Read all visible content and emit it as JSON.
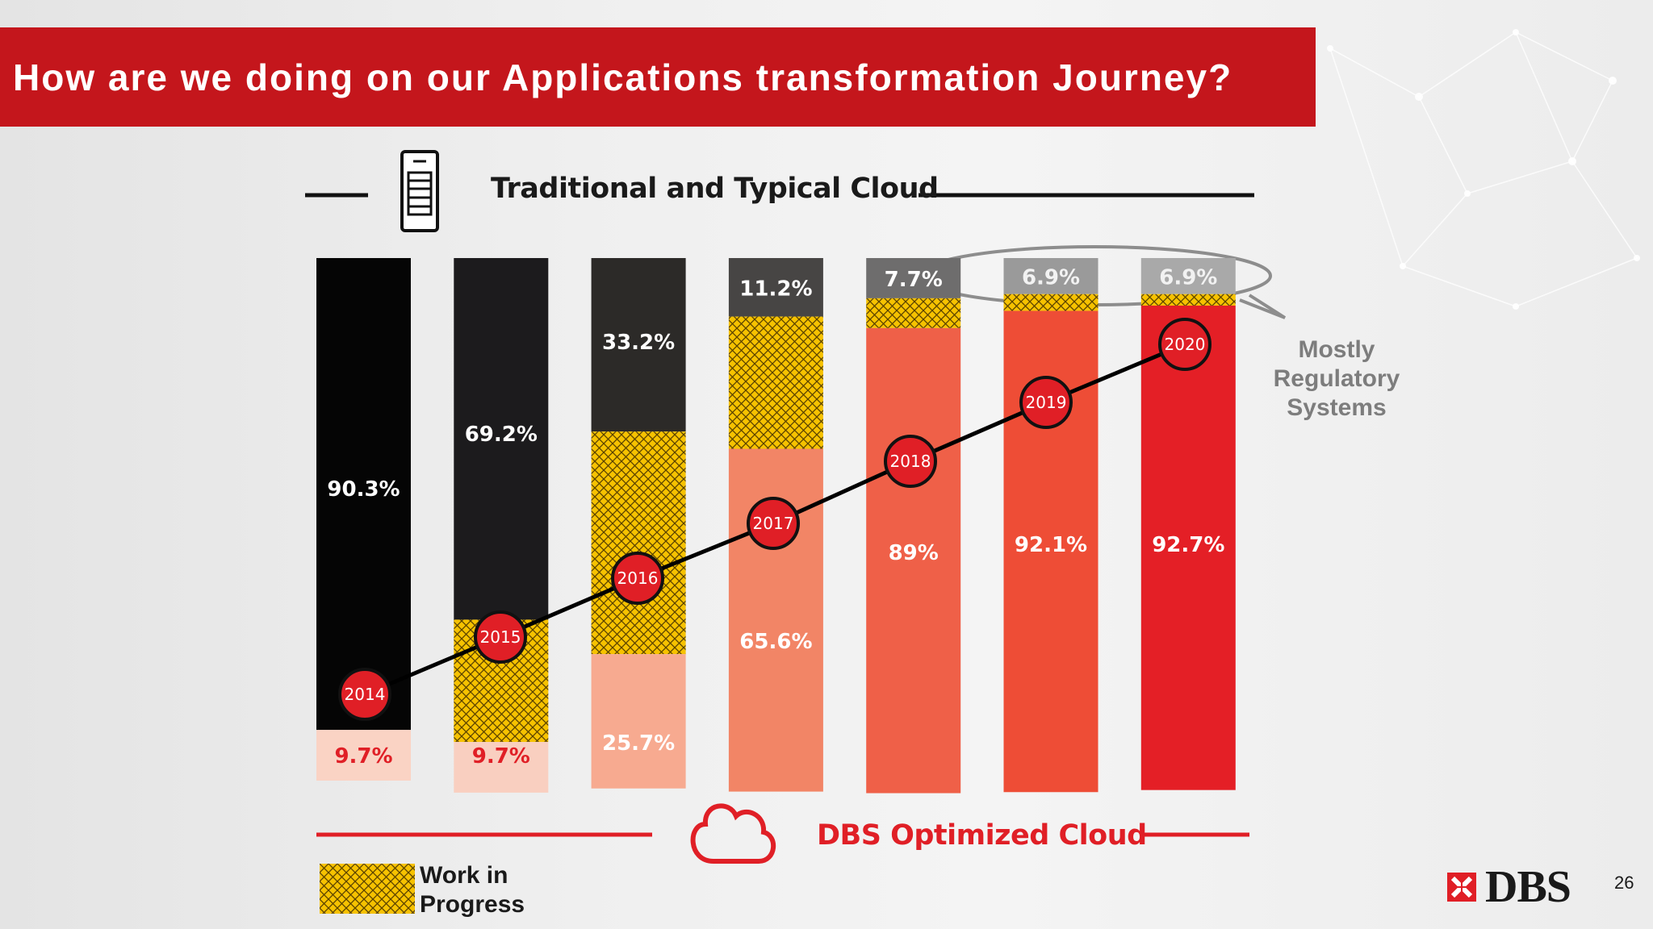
{
  "slide": {
    "title": "How are we doing on our Applications transformation Journey?",
    "top_heading": "Traditional and Typical Cloud",
    "bottom_heading": "DBS Optimized Cloud",
    "annotation_lines": [
      "Mostly",
      "Regulatory",
      "Systems"
    ],
    "legend_label_lines": [
      "Work in",
      "Progress"
    ],
    "logo_text": "DBS",
    "page_number": "26"
  },
  "colors": {
    "title_bar": "#c4161c",
    "traditional": [
      "#050505",
      "#1c1b1d",
      "#2c2a28",
      "#474544",
      "#6e6d6d",
      "#9a9a9a",
      "#a9a9a9"
    ],
    "optimized": [
      "#fad3c4",
      "#f9cfc0",
      "#f7aa90",
      "#f28566",
      "#ef6048",
      "#ee4d36",
      "#e41f26"
    ],
    "wip": "#f6c200",
    "marker": "#e01f26",
    "trend_line": "#000000"
  },
  "icons": [
    "server-icon",
    "cloud-icon",
    "dbs-logo-icon"
  ],
  "chart_data": {
    "type": "bar",
    "stacked": true,
    "categories": [
      "2014",
      "2015",
      "2016",
      "2017",
      "2018",
      "2019",
      "2020"
    ],
    "ylim": [
      0,
      100
    ],
    "series": [
      {
        "name": "Traditional and Typical Cloud",
        "values": [
          90.3,
          69.2,
          33.2,
          11.2,
          7.7,
          6.9,
          6.9
        ],
        "labels": [
          "90.3%",
          "69.2%",
          "33.2%",
          "11.2%",
          "7.7%",
          "6.9%",
          "6.9%"
        ]
      },
      {
        "name": "Work in Progress",
        "values": [
          0,
          23.4,
          42.6,
          25.3,
          5.7,
          3.2,
          2.2
        ]
      },
      {
        "name": "DBS Optimized Cloud",
        "values": [
          9.7,
          9.7,
          25.7,
          65.6,
          89,
          92.1,
          92.7
        ],
        "labels": [
          "9.7%",
          "9.7%",
          "25.7%",
          "65.6%",
          "89%",
          "92.1%",
          "92.7%"
        ]
      }
    ],
    "trend_markers": [
      "2014",
      "2015",
      "2016",
      "2017",
      "2018",
      "2019",
      "2020"
    ],
    "grid": false,
    "legend": "bottom-left"
  }
}
